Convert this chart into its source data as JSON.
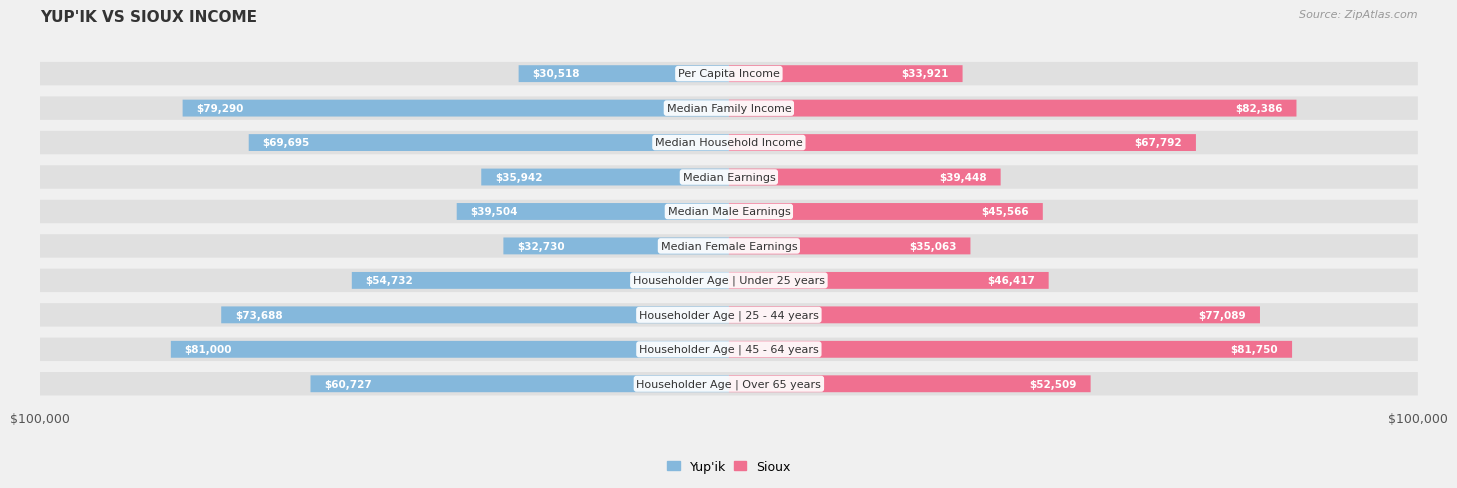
{
  "title": "YUP'IK VS SIOUX INCOME",
  "source": "Source: ZipAtlas.com",
  "max_value": 100000,
  "categories": [
    "Per Capita Income",
    "Median Family Income",
    "Median Household Income",
    "Median Earnings",
    "Median Male Earnings",
    "Median Female Earnings",
    "Householder Age | Under 25 years",
    "Householder Age | 25 - 44 years",
    "Householder Age | 45 - 64 years",
    "Householder Age | Over 65 years"
  ],
  "yupik_values": [
    30518,
    79290,
    69695,
    35942,
    39504,
    32730,
    54732,
    73688,
    81000,
    60727
  ],
  "sioux_values": [
    33921,
    82386,
    67792,
    39448,
    45566,
    35063,
    46417,
    77089,
    81750,
    52509
  ],
  "yupik_color": "#85b8dc",
  "sioux_color": "#f07090",
  "bg_color": "#f0f0f0",
  "row_bg_even": "#e4e4e4",
  "row_bg_odd": "#e8e8e8",
  "title_color": "#333333",
  "source_color": "#999999",
  "label_fontsize": 8,
  "value_fontsize": 7.5,
  "title_fontsize": 11,
  "source_fontsize": 8
}
